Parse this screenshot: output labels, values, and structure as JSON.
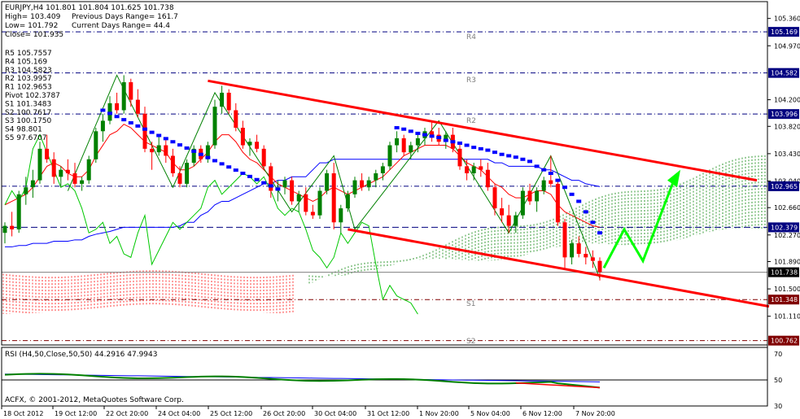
{
  "info": {
    "symbol_line": "EURJPY,H4  101.801 101.804 101.625 101.738",
    "high": "High= 103.409",
    "prev_range": "Previous Days Range= 161.7",
    "low": "Low= 101.792",
    "cur_range": "Current Days Range= 44.4",
    "close": "Close= 101.935"
  },
  "pivots": [
    "R5 105.7557",
    "R4 105.169",
    "R3 104.5823",
    "R2 103.9957",
    "R1 102.9653",
    "Pivot 102.3787",
    "S1 101.3483",
    "S2 100.7617",
    "S3 100.1750",
    "S4 98.801",
    "S5 97.6707"
  ],
  "level_labels": {
    "r4": "R4",
    "r3": "R3",
    "r2": "R2",
    "s1": "S1",
    "s2": "S2"
  },
  "rsi_label": "RSI (H4,50,Close,50,50) 44.2916 47.9943",
  "copyright": "ACFX, © 2001-2012, MetaQuotes Software Corp.",
  "colors": {
    "bull": "#008000",
    "bear": "#ff0000",
    "channel": "#ff0000",
    "arrow": "#00ff00",
    "grid": "#000080",
    "kumo_up": "#008000",
    "kumo_down": "#ff0000",
    "tenkan": "#ff0000",
    "kijun": "#0000ff",
    "chikou": "#00c800",
    "zigzag": "#008000",
    "sar": "#0000ff",
    "rsi": "#008000",
    "rsi_ma": "#ff0000",
    "rsi_avg": "#0000ff"
  },
  "chart_data": {
    "type": "candlestick",
    "symbol": "EURJPY",
    "timeframe": "H4",
    "ylim": [
      100.7,
      105.6
    ],
    "y_ticks": [
      "105.360",
      "104.970",
      "104.200",
      "103.820",
      "103.430",
      "103.040",
      "102.660",
      "102.270",
      "101.890",
      "101.500",
      "101.110"
    ],
    "price_tags": [
      {
        "value": 105.169,
        "text": "105.169"
      },
      {
        "value": 104.582,
        "text": "104.582"
      },
      {
        "value": 103.996,
        "text": "103.996"
      },
      {
        "value": 102.965,
        "text": "102.965"
      },
      {
        "value": 102.379,
        "text": "102.379"
      },
      {
        "value": 101.738,
        "text": "101.738"
      },
      {
        "value": 101.348,
        "text": "101.348"
      },
      {
        "value": 100.762,
        "text": "100.762"
      }
    ],
    "x_ticks": [
      "18 Oct 2012",
      "19 Oct 12:00",
      "22 Oct 20:00",
      "24 Oct 04:00",
      "25 Oct 12:00",
      "26 Oct 20:00",
      "30 Oct 04:00",
      "31 Oct 12:00",
      "1 Nov 20:00",
      "5 Nov 04:00",
      "6 Nov 12:00",
      "7 Nov 20:00"
    ],
    "candles": [
      [
        102.3,
        102.45,
        102.15,
        102.4
      ],
      [
        102.4,
        102.6,
        102.25,
        102.35
      ],
      [
        102.35,
        102.9,
        102.3,
        102.85
      ],
      [
        102.85,
        103.1,
        102.7,
        102.95
      ],
      [
        102.95,
        103.2,
        102.8,
        103.05
      ],
      [
        103.05,
        103.6,
        103.0,
        103.5
      ],
      [
        103.5,
        103.7,
        103.3,
        103.35
      ],
      [
        103.35,
        103.45,
        103.0,
        103.1
      ],
      [
        103.1,
        103.25,
        102.95,
        103.2
      ],
      [
        103.2,
        103.35,
        103.05,
        103.15
      ],
      [
        103.15,
        103.3,
        102.95,
        103.0
      ],
      [
        103.0,
        103.1,
        102.9,
        103.05
      ],
      [
        103.05,
        103.4,
        103.0,
        103.35
      ],
      [
        103.35,
        103.8,
        103.3,
        103.75
      ],
      [
        103.75,
        104.0,
        103.6,
        103.9
      ],
      [
        103.9,
        104.25,
        103.85,
        104.15
      ],
      [
        104.15,
        104.3,
        104.0,
        104.05
      ],
      [
        104.05,
        104.55,
        104.0,
        104.45
      ],
      [
        104.45,
        104.5,
        104.1,
        104.2
      ],
      [
        104.2,
        104.35,
        103.95,
        104.0
      ],
      [
        104.0,
        104.1,
        103.45,
        103.5
      ],
      [
        103.5,
        103.6,
        103.2,
        103.45
      ],
      [
        103.45,
        103.7,
        103.4,
        103.55
      ],
      [
        103.55,
        103.65,
        103.3,
        103.4
      ],
      [
        103.4,
        103.5,
        103.1,
        103.15
      ],
      [
        103.15,
        103.25,
        102.95,
        103.0
      ],
      [
        103.0,
        103.35,
        102.95,
        103.3
      ],
      [
        103.3,
        103.55,
        103.25,
        103.5
      ],
      [
        103.5,
        103.55,
        103.3,
        103.35
      ],
      [
        103.35,
        103.6,
        103.3,
        103.55
      ],
      [
        103.55,
        104.2,
        103.5,
        104.1
      ],
      [
        104.1,
        104.4,
        104.0,
        104.3
      ],
      [
        104.3,
        104.35,
        104.0,
        104.05
      ],
      [
        104.05,
        104.15,
        103.75,
        103.8
      ],
      [
        103.8,
        103.9,
        103.5,
        103.55
      ],
      [
        103.55,
        103.65,
        103.4,
        103.6
      ],
      [
        103.6,
        103.7,
        103.45,
        103.5
      ],
      [
        103.5,
        103.55,
        103.2,
        103.25
      ],
      [
        103.25,
        103.3,
        102.8,
        102.9
      ],
      [
        102.9,
        103.05,
        102.75,
        102.95
      ],
      [
        102.95,
        103.1,
        102.85,
        103.05
      ],
      [
        103.05,
        103.1,
        102.7,
        102.75
      ],
      [
        102.75,
        102.9,
        102.6,
        102.85
      ],
      [
        102.85,
        102.95,
        102.55,
        102.6
      ],
      [
        102.6,
        102.7,
        102.5,
        102.55
      ],
      [
        102.55,
        102.95,
        102.5,
        102.9
      ],
      [
        102.9,
        103.2,
        102.85,
        103.15
      ],
      [
        103.15,
        103.3,
        102.35,
        102.45
      ],
      [
        102.45,
        102.7,
        102.3,
        102.65
      ],
      [
        102.65,
        102.9,
        102.6,
        102.85
      ],
      [
        102.85,
        103.1,
        102.8,
        103.05
      ],
      [
        103.05,
        103.15,
        102.9,
        102.95
      ],
      [
        102.95,
        103.1,
        102.9,
        103.05
      ],
      [
        103.05,
        103.2,
        102.95,
        103.15
      ],
      [
        103.15,
        103.3,
        103.05,
        103.25
      ],
      [
        103.25,
        103.6,
        103.2,
        103.55
      ],
      [
        103.55,
        103.75,
        103.45,
        103.65
      ],
      [
        103.65,
        103.7,
        103.4,
        103.45
      ],
      [
        103.45,
        103.6,
        103.35,
        103.55
      ],
      [
        103.55,
        103.7,
        103.45,
        103.65
      ],
      [
        103.65,
        103.8,
        103.55,
        103.75
      ],
      [
        103.75,
        103.9,
        103.6,
        103.7
      ],
      [
        103.7,
        103.8,
        103.55,
        103.6
      ],
      [
        103.6,
        103.75,
        103.5,
        103.7
      ],
      [
        103.7,
        103.8,
        103.45,
        103.5
      ],
      [
        103.5,
        103.6,
        103.2,
        103.25
      ],
      [
        103.25,
        103.35,
        103.05,
        103.15
      ],
      [
        103.15,
        103.3,
        103.05,
        103.25
      ],
      [
        103.25,
        103.35,
        103.1,
        103.2
      ],
      [
        103.2,
        103.3,
        102.9,
        102.95
      ],
      [
        102.95,
        103.0,
        102.55,
        102.65
      ],
      [
        102.65,
        102.8,
        102.45,
        102.55
      ],
      [
        102.55,
        102.7,
        102.3,
        102.4
      ],
      [
        102.4,
        102.6,
        102.3,
        102.55
      ],
      [
        102.55,
        102.95,
        102.5,
        102.9
      ],
      [
        102.9,
        103.0,
        102.7,
        102.75
      ],
      [
        102.75,
        102.95,
        102.6,
        102.9
      ],
      [
        102.9,
        103.1,
        102.85,
        103.05
      ],
      [
        103.05,
        103.4,
        102.95,
        103.0
      ],
      [
        103.0,
        103.05,
        102.4,
        102.45
      ],
      [
        102.45,
        102.5,
        101.8,
        101.95
      ],
      [
        101.95,
        102.2,
        101.85,
        102.15
      ],
      [
        102.15,
        102.25,
        101.95,
        102.0
      ],
      [
        102.0,
        102.1,
        101.85,
        101.95
      ],
      [
        101.95,
        102.05,
        101.8,
        101.9
      ],
      [
        101.9,
        101.95,
        101.62,
        101.74
      ]
    ],
    "ichimoku": {
      "tenkan": [
        102.7,
        102.75,
        102.8,
        102.85,
        102.95,
        103.1,
        103.25,
        103.3,
        103.25,
        103.15,
        103.1,
        103.1,
        103.2,
        103.4,
        103.55,
        103.7,
        103.75,
        103.85,
        103.8,
        103.7,
        103.6,
        103.55,
        103.5,
        103.45,
        103.3,
        103.2,
        103.2,
        103.25,
        103.35,
        103.45,
        103.6,
        103.7,
        103.7,
        103.6,
        103.45,
        103.35,
        103.3,
        103.2,
        103.1,
        103.0,
        102.95,
        102.9,
        102.85,
        102.8,
        102.75,
        102.8,
        102.9,
        102.95,
        102.9,
        102.85,
        102.9,
        102.95,
        103.0,
        103.05,
        103.1,
        103.2,
        103.3,
        103.4,
        103.45,
        103.5,
        103.55,
        103.55,
        103.55,
        103.55,
        103.5,
        103.4,
        103.3,
        103.25,
        103.2,
        103.1,
        103.0,
        102.95,
        102.85,
        102.8,
        102.8,
        102.85,
        102.9,
        102.9,
        102.85,
        102.7,
        102.6,
        102.55,
        102.5,
        102.45,
        102.4,
        102.38
      ],
      "kijun": [
        102.1,
        102.1,
        102.12,
        102.12,
        102.15,
        102.15,
        102.15,
        102.18,
        102.18,
        102.18,
        102.2,
        102.2,
        102.25,
        102.28,
        102.3,
        102.32,
        102.35,
        102.38,
        102.38,
        102.38,
        102.38,
        102.38,
        102.38,
        102.38,
        102.38,
        102.4,
        102.45,
        102.45,
        102.55,
        102.6,
        102.7,
        102.75,
        102.75,
        102.8,
        102.85,
        102.9,
        102.95,
        103.0,
        103.0,
        103.05,
        103.05,
        103.1,
        103.1,
        103.1,
        103.2,
        103.3,
        103.3,
        103.35,
        103.35,
        103.35,
        103.35,
        103.35,
        103.35,
        103.35,
        103.35,
        103.35,
        103.35,
        103.35,
        103.35,
        103.35,
        103.35,
        103.35,
        103.35,
        103.35,
        103.35,
        103.35,
        103.35,
        103.35,
        103.35,
        103.35,
        103.3,
        103.3,
        103.25,
        103.25,
        103.25,
        103.25,
        103.25,
        103.2,
        103.2,
        103.15,
        103.1,
        103.05,
        103.05,
        103.0,
        102.98,
        102.96
      ]
    },
    "sar": [
      103.8,
      103.78,
      103.75,
      103.72,
      103.7,
      103.68,
      103.66,
      103.62,
      103.6,
      103.58,
      103.55,
      103.52,
      103.5,
      103.48,
      103.45,
      103.42,
      103.4,
      103.38,
      103.35,
      103.32,
      103.25,
      103.2,
      103.15,
      103.05,
      102.95,
      102.85,
      102.75,
      102.6,
      102.45,
      102.3
    ],
    "rsi": {
      "ylim": [
        30,
        75
      ],
      "ticks": [
        "70",
        "50",
        "30"
      ],
      "value": 44.2916,
      "signal": 47.9943
    }
  }
}
